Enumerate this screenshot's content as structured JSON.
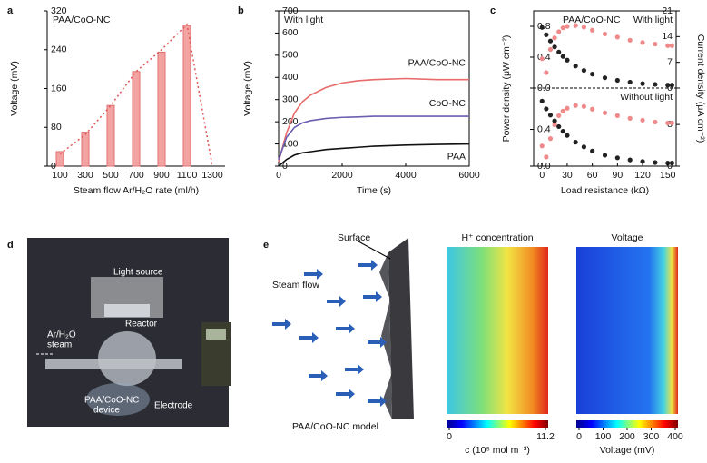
{
  "chart_data": [
    {
      "type": "bar",
      "panel": "a",
      "annotation": "PAA/CoO-NC",
      "xlabel": "Steam flow Ar/H₂O rate (ml/h)",
      "ylabel": "Voltage (mV)",
      "categories": [
        "100",
        "300",
        "500",
        "700",
        "900",
        "1100",
        "1300"
      ],
      "values": [
        30,
        70,
        125,
        195,
        235,
        290,
        null
      ],
      "trend_values": [
        25,
        65,
        125,
        195,
        240,
        292,
        0
      ],
      "color": "#f4a3a3",
      "trend_color": "#e05656",
      "ylim": [
        0,
        320
      ],
      "yticks": [
        0,
        80,
        160,
        240,
        320
      ]
    },
    {
      "type": "line",
      "panel": "b",
      "annotation": "With light",
      "xlabel": "Time (s)",
      "ylabel": "Voltage (mV)",
      "x": [
        0,
        250,
        500,
        750,
        1000,
        1500,
        2000,
        2500,
        3000,
        4000,
        5000,
        6000
      ],
      "series": [
        {
          "name": "PAA/CoO-NC",
          "color": "#e86a6a",
          "values": [
            20,
            150,
            240,
            290,
            320,
            355,
            375,
            385,
            390,
            395,
            390,
            390
          ]
        },
        {
          "name": "CoO-NC",
          "color": "#6a5fb0",
          "values": [
            30,
            130,
            175,
            195,
            205,
            215,
            220,
            222,
            225,
            225,
            225,
            225
          ]
        },
        {
          "name": "PAA",
          "color": "#111111",
          "values": [
            0,
            30,
            50,
            60,
            65,
            75,
            80,
            85,
            90,
            95,
            98,
            100
          ]
        }
      ],
      "xlim": [
        0,
        6000
      ],
      "xticks": [
        0,
        2000,
        4000,
        6000
      ],
      "ylim": [
        0,
        700
      ],
      "yticks": [
        0,
        100,
        200,
        300,
        400,
        500,
        600,
        700
      ]
    },
    {
      "type": "scatter",
      "panel": "c",
      "annotation": "PAA/CoO-NC",
      "xlabel": "Load resistance (kΩ)",
      "ylabel": "Power density (μW cm⁻²)",
      "y2label": "Current density (μA cm⁻²)",
      "x": [
        0,
        5,
        10,
        15,
        20,
        25,
        30,
        40,
        50,
        60,
        75,
        90,
        105,
        120,
        135,
        150,
        155
      ],
      "xlim": [
        -10,
        160
      ],
      "xticks": [
        0,
        30,
        60,
        90,
        120,
        150
      ],
      "subplots": [
        {
          "label": "With light",
          "ylim": [
            0,
            1.0
          ],
          "yticks": [
            {
              "value": 0,
              "label": "0.0"
            },
            0.4,
            0.8
          ],
          "y2lim": [
            0,
            21
          ],
          "y2ticks": [
            0,
            7,
            14,
            21
          ],
          "series": [
            {
              "color": "#f08a8a",
              "values": [
                0.38,
                0.2,
                0.5,
                0.65,
                0.73,
                0.78,
                0.8,
                0.81,
                0.79,
                0.75,
                0.7,
                0.66,
                0.62,
                0.59,
                0.57,
                0.55,
                0.55
              ]
            },
            {
              "color": "#222222",
              "axis": "y2",
              "values": [
                16.5,
                14.5,
                12.8,
                11.2,
                9.8,
                8.6,
                7.6,
                6,
                4.8,
                3.8,
                2.8,
                2.1,
                1.6,
                1.2,
                1.0,
                0.8,
                0.8
              ]
            }
          ]
        },
        {
          "label": "Without light",
          "ylim": [
            0,
            0.85
          ],
          "yticks": [
            {
              "value": 0,
              "label": "0.0"
            },
            0.4
          ],
          "y2lim": [
            0,
            15
          ],
          "y2ticks": [
            0,
            8
          ],
          "series": [
            {
              "color": "#f08a8a",
              "values": [
                0.22,
                0.1,
                0.3,
                0.45,
                0.55,
                0.6,
                0.63,
                0.66,
                0.65,
                0.62,
                0.58,
                0.55,
                0.52,
                0.5,
                0.48,
                0.47,
                0.47
              ]
            },
            {
              "color": "#222222",
              "axis": "y2",
              "values": [
                12.5,
                11,
                9.8,
                8.7,
                7.6,
                6.7,
                5.9,
                4.6,
                3.7,
                2.9,
                2.1,
                1.6,
                1.2,
                0.9,
                0.7,
                0.6,
                0.6
              ]
            }
          ]
        }
      ]
    }
  ],
  "photo": {
    "panel": "d",
    "labels": [
      "Light source",
      "Reactor",
      "Ar/H₂O",
      "steam",
      "PAA/CoO-NC",
      "device",
      "Electrode"
    ]
  },
  "model": {
    "panel": "e",
    "surface": "Surface",
    "flow": "Steam flow",
    "caption": "PAA/CoO-NC model",
    "h_map": {
      "title": "H⁺ concentration",
      "lim": [
        0,
        11.2
      ],
      "ticks": [
        0,
        11.2
      ],
      "label": "c (10⁵ mol m⁻³)"
    },
    "v_map": {
      "title": "Voltage",
      "lim": [
        0,
        400
      ],
      "ticks": [
        0,
        100,
        200,
        300,
        400
      ],
      "label": "Voltage (mV)"
    }
  }
}
